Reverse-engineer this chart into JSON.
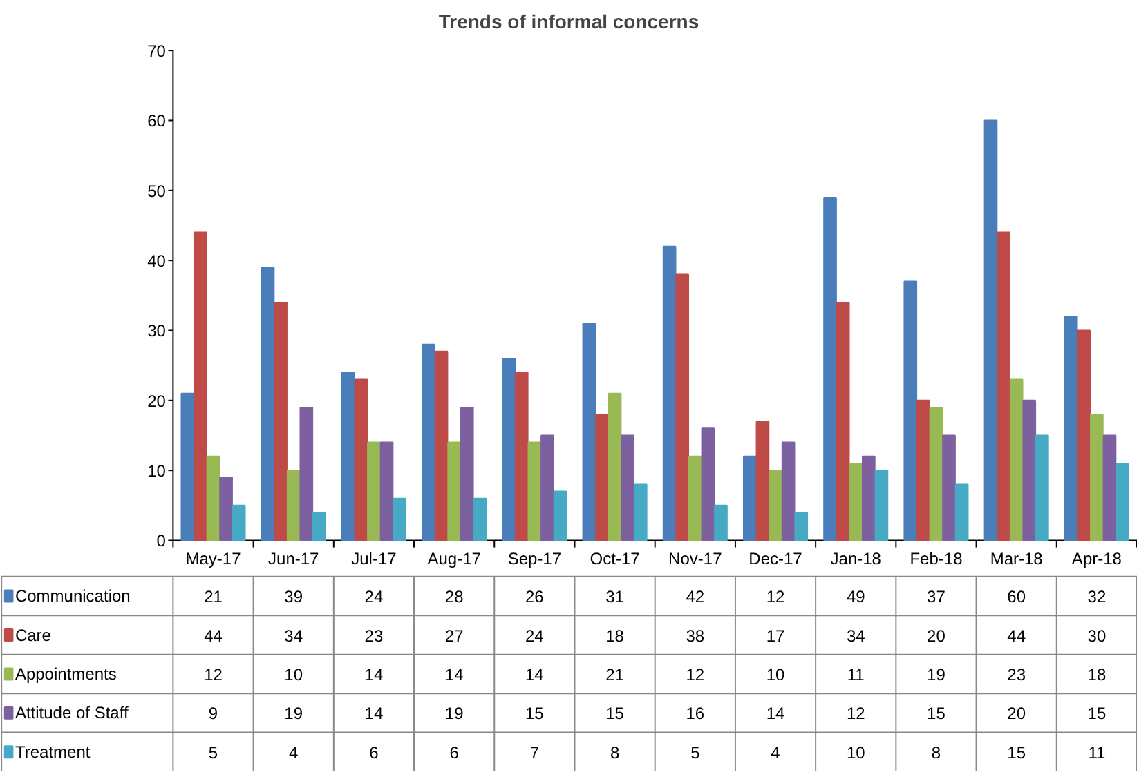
{
  "chart_data": {
    "type": "bar",
    "title": "Trends of informal concerns",
    "categories": [
      "May-17",
      "Jun-17",
      "Jul-17",
      "Aug-17",
      "Sep-17",
      "Oct-17",
      "Nov-17",
      "Dec-17",
      "Jan-18",
      "Feb-18",
      "Mar-18",
      "Apr-18"
    ],
    "series": [
      {
        "name": "Communication",
        "color": "#4a7ebb",
        "values": [
          21,
          39,
          24,
          28,
          26,
          31,
          42,
          12,
          49,
          37,
          60,
          32
        ]
      },
      {
        "name": "Care",
        "color": "#be4b48",
        "values": [
          44,
          34,
          23,
          27,
          24,
          18,
          38,
          17,
          34,
          20,
          44,
          30
        ]
      },
      {
        "name": "Appointments",
        "color": "#98b954",
        "values": [
          12,
          10,
          14,
          14,
          14,
          21,
          12,
          10,
          11,
          19,
          23,
          18
        ]
      },
      {
        "name": "Attitude of Staff",
        "color": "#7d60a0",
        "values": [
          9,
          19,
          14,
          19,
          15,
          15,
          16,
          14,
          12,
          15,
          20,
          15
        ]
      },
      {
        "name": "Treatment",
        "color": "#46aac5",
        "values": [
          5,
          4,
          6,
          6,
          7,
          8,
          5,
          4,
          10,
          8,
          15,
          11
        ]
      }
    ],
    "ylim": [
      0,
      70
    ],
    "yticks": [
      0,
      10,
      20,
      30,
      40,
      50,
      60,
      70
    ],
    "grid": false,
    "legend": "bottom",
    "data_labels": true
  }
}
